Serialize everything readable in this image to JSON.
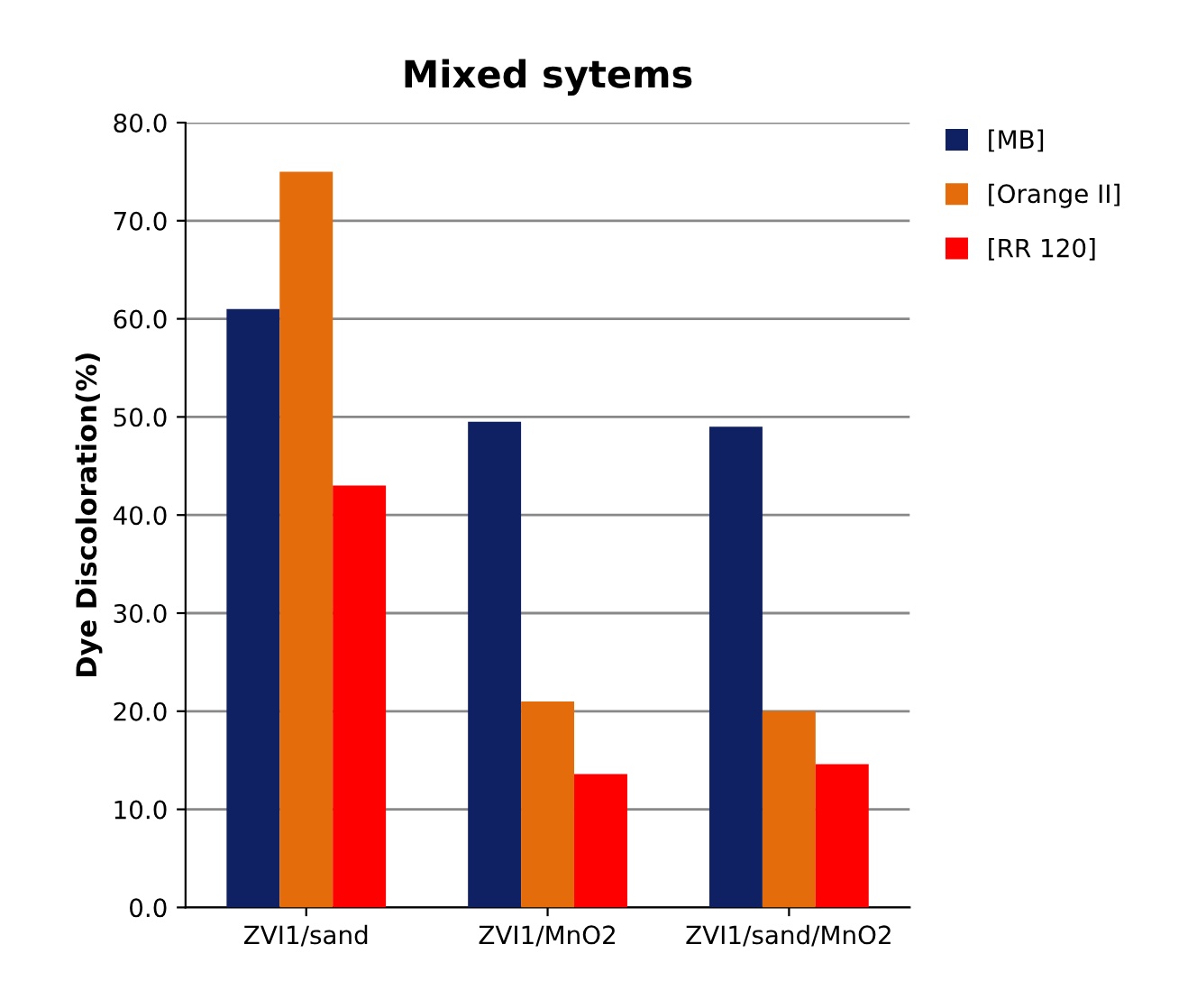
{
  "chart_data": {
    "type": "bar",
    "title": "Mixed sytems",
    "ylabel": "Dye Discoloration(%)",
    "categories": [
      "ZVI1/sand",
      "ZVI1/MnO2",
      "ZVI1/sand/MnO2"
    ],
    "series": [
      {
        "name": "[MB]",
        "color": "#0f2063",
        "values": [
          61,
          49.5,
          49
        ]
      },
      {
        "name": "[Orange II]",
        "color": "#e46c0a",
        "values": [
          75,
          21,
          20
        ]
      },
      {
        "name": "[RR 120]",
        "color": "#ff0000",
        "values": [
          43,
          13.6,
          14.6
        ]
      }
    ],
    "ylim": [
      0,
      80
    ],
    "yticks": [
      {
        "value": 0,
        "label": "0.0"
      },
      {
        "value": 10,
        "label": "10.0"
      },
      {
        "value": 20,
        "label": "20.0"
      },
      {
        "value": 30,
        "label": "30.0"
      },
      {
        "value": 40,
        "label": "40.0"
      },
      {
        "value": 50,
        "label": "50.0"
      },
      {
        "value": 60,
        "label": "60.0"
      },
      {
        "value": 70,
        "label": "70.0"
      },
      {
        "value": 80,
        "label": "80.0"
      }
    ],
    "grid": "y",
    "legend": "top right"
  }
}
